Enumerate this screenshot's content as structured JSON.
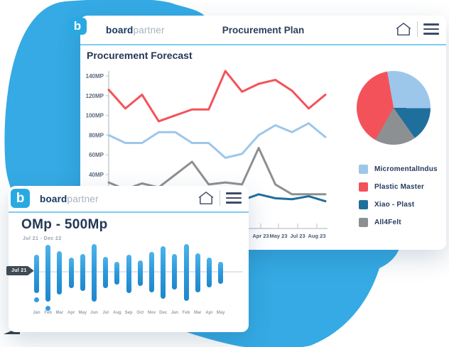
{
  "colors": {
    "blob": "#35AAE4",
    "logo_square": "#29A9E2",
    "header_border": "#7FCDF1",
    "axis": "#C7CBD1",
    "navy_text": "#253754"
  },
  "back_window": {
    "brand": {
      "bold": "board",
      "light": "partner"
    },
    "logo_glyph": "b",
    "title": "Procurement Plan",
    "section_title": "Procurement Forecast"
  },
  "front_window": {
    "brand": {
      "bold": "board",
      "light": "partner"
    },
    "logo_glyph": "b",
    "title": "OMp - 500Mp",
    "subtitle": "Jul 21 - Dec 22",
    "baseline_badge": "Jul 21"
  },
  "chart_data": [
    {
      "type": "line",
      "title": "Procurement Forecast",
      "y_ticks": [
        "40MP",
        "60MP",
        "80MP",
        "100MP",
        "120MP",
        "140MP"
      ],
      "ylim": [
        40,
        150
      ],
      "x_labels_visible": [
        "Apr 23",
        "May 23",
        "Jul 23",
        "Aug 23"
      ],
      "grid": false,
      "legend_position": "right",
      "series": [
        {
          "name": "All4Felt",
          "color": "#8D9092",
          "values": [
            32,
            25,
            31,
            27,
            40,
            53,
            30,
            32,
            30,
            67,
            30,
            20,
            20,
            20
          ]
        },
        {
          "name": "Xiao - Plast",
          "color": "#1F6F9D",
          "values": [
            25,
            22,
            20,
            19,
            18,
            17,
            16,
            15,
            14,
            20,
            16,
            15,
            18,
            13
          ]
        },
        {
          "name": "MicromentalIndus",
          "color": "#9CC7EA",
          "values": [
            80,
            72,
            72,
            83,
            83,
            72,
            72,
            57,
            61,
            80,
            90,
            83,
            92,
            78
          ]
        },
        {
          "name": "Plastic Master",
          "color": "#F4525A",
          "values": [
            126,
            107,
            121,
            94,
            100,
            106,
            106,
            145,
            124,
            132,
            136,
            125,
            107,
            121
          ]
        }
      ]
    },
    {
      "type": "pie",
      "start_angle_deg": -10,
      "slices_draw_order": [
        {
          "label": "MicromentalIndus",
          "color": "#9CC7EA",
          "value": 28
        },
        {
          "label": "Xiao - Plast",
          "color": "#1F6F9D",
          "value": 15
        },
        {
          "label": "All4Felt",
          "color": "#8D9092",
          "value": 18
        },
        {
          "label": "Plastic Master",
          "color": "#F4525A",
          "value": 39
        }
      ],
      "legend": [
        {
          "label": "MicromentalIndus",
          "color": "#9CC7EA"
        },
        {
          "label": "Plastic Master",
          "color": "#F4525A"
        },
        {
          "label": "Xiao - Plast",
          "color": "#1F6F9D"
        },
        {
          "label": "All4Felt",
          "color": "#8D9092"
        }
      ]
    },
    {
      "type": "bar",
      "title": "OMp - 500Mp",
      "subtitle": "Jul 21 - Dec 22",
      "baseline_label": "Jul 21",
      "categories": [
        "Jan",
        "Feb",
        "Mar",
        "Apr",
        "May",
        "Jun",
        "Jul",
        "Aug",
        "Sep",
        "Oct",
        "Nov",
        "Dec",
        "Jan",
        "Feb",
        "Mar",
        "Apr",
        "May"
      ],
      "up": [
        24,
        38,
        29,
        20,
        25,
        39,
        21,
        14,
        24,
        16,
        28,
        36,
        25,
        39,
        26,
        20,
        14
      ],
      "down": [
        30,
        42,
        32,
        23,
        27,
        42,
        23,
        18,
        30,
        20,
        29,
        38,
        25,
        41,
        29,
        22,
        17
      ],
      "outlier_dot_indexes": [
        0,
        1
      ]
    }
  ]
}
